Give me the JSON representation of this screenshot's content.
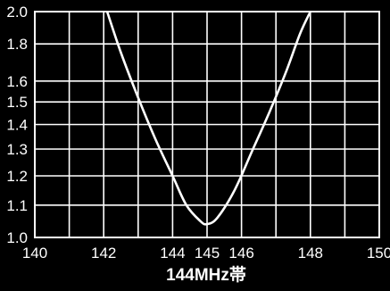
{
  "chart_data": {
    "type": "line",
    "xlabel": "144MHz帯",
    "ylabel": "",
    "xlim": [
      140,
      150
    ],
    "ylim": [
      1.0,
      2.0
    ],
    "x_ticks": [
      140,
      142,
      144,
      145,
      146,
      148,
      150
    ],
    "x_tick_labels": [
      "140",
      "142",
      "144",
      "145",
      "146",
      "148",
      "150"
    ],
    "x_gridlines": [
      140,
      141,
      142,
      143,
      144,
      145,
      146,
      147,
      148,
      149,
      150
    ],
    "y_scale": "swr",
    "y_ticks": [
      1.0,
      1.1,
      1.2,
      1.3,
      1.4,
      1.5,
      1.6,
      1.8,
      2.0
    ],
    "y_tick_labels": [
      "1.0",
      "1.1",
      "1.2",
      "1.3",
      "1.4",
      "1.5",
      "1.6",
      "1.8",
      "2.0"
    ],
    "grid": true,
    "series": [
      {
        "x": [
          142.1,
          142.5,
          143.0,
          143.5,
          144.0,
          144.4,
          144.8,
          145.0,
          145.3,
          145.8,
          146.3,
          146.8,
          147.3,
          147.7,
          148.0
        ],
        "y": [
          2.0,
          1.75,
          1.52,
          1.34,
          1.2,
          1.1,
          1.05,
          1.04,
          1.06,
          1.15,
          1.29,
          1.45,
          1.65,
          1.86,
          2.0
        ]
      }
    ]
  },
  "colors": {
    "background": "#000000",
    "plot_area": "#000000",
    "grid": "#ffffff",
    "curve": "#ffffff",
    "text": "#ffffff"
  }
}
